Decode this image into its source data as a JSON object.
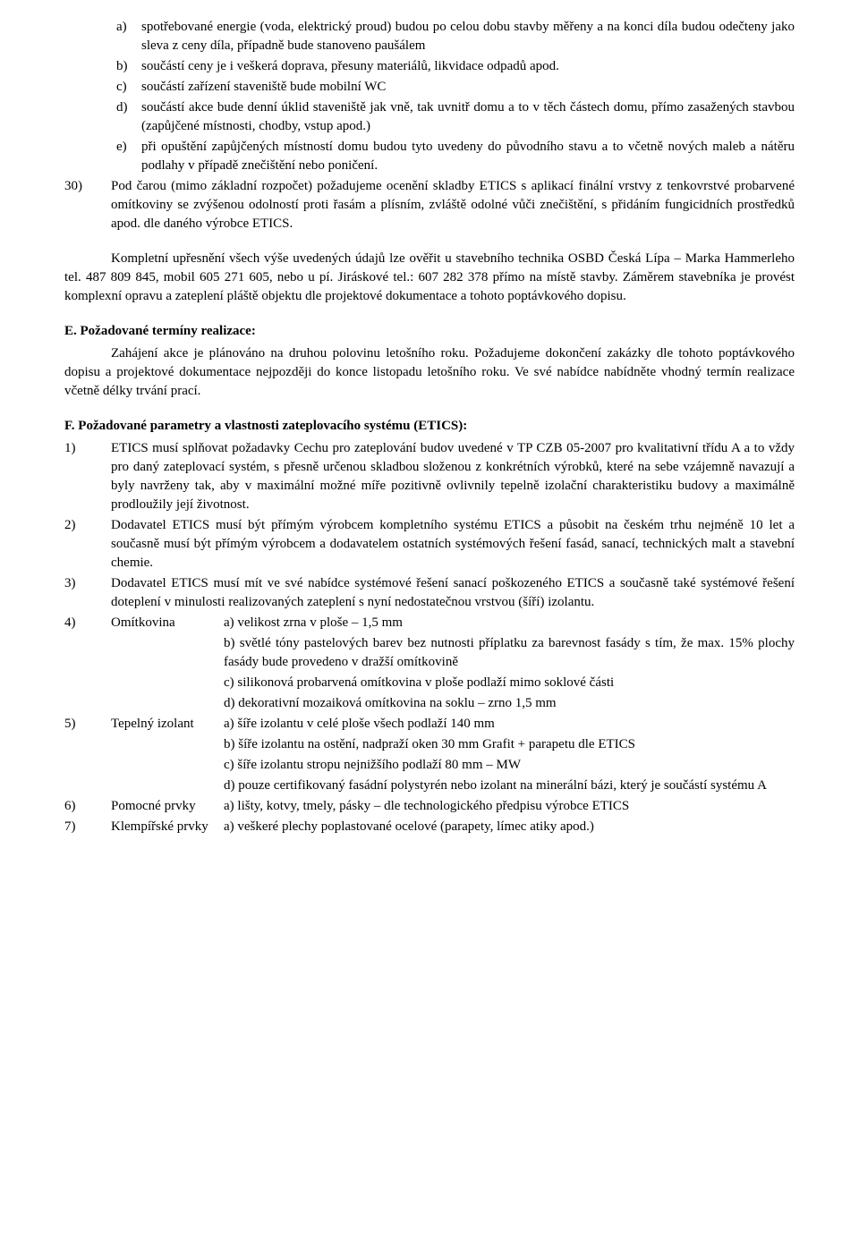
{
  "innerA": {
    "label": "a)",
    "text": "spotřebované energie (voda, elektrický proud) budou po celou dobu stavby měřeny a na konci díla budou odečteny jako sleva z ceny díla, případně bude stanoveno paušálem"
  },
  "innerB": {
    "label": "b)",
    "text": "součástí ceny je i veškerá doprava, přesuny materiálů, likvidace odpadů apod."
  },
  "innerC": {
    "label": "c)",
    "text": "součástí zařízení staveniště bude mobilní WC"
  },
  "innerD": {
    "label": "d)",
    "text": "součástí akce bude denní úklid staveniště jak vně, tak uvnitř domu a to v těch částech domu, přímo zasažených stavbou (zapůjčené místnosti, chodby, vstup apod.)"
  },
  "innerE": {
    "label": "e)",
    "text": "při opuštění zapůjčených místností domu budou tyto uvedeny do původního stavu a to včetně nových maleb a nátěru podlahy v případě znečištění nebo poničení."
  },
  "item30": {
    "label": "30)",
    "text": "Pod čarou (mimo základní rozpočet) požadujeme ocenění skladby ETICS s aplikací finální vrstvy z tenkovrstvé probarvené omítkoviny se zvýšenou odolností proti řasám a plísním, zvláště odolné vůči znečištění, s přidáním fungicidních prostředků apod. dle daného výrobce ETICS."
  },
  "contact": "Kompletní upřesnění všech výše uvedených údajů lze ověřit u stavebního technika OSBD Česká Lípa – Marka Hammerleho tel. 487 809 845, mobil 605 271 605, nebo u pí. Jiráskové tel.: 607 282 378 přímo na místě stavby. Záměrem stavebníka je provést komplexní opravu a zateplení pláště objektu dle projektové dokumentace a tohoto poptávkového dopisu.",
  "sectionE": {
    "title": "E. Požadované termíny realizace:",
    "text": "Zahájení akce je plánováno na druhou polovinu letošního roku. Požadujeme dokončení zakázky dle tohoto poptávkového dopisu a projektové dokumentace nejpozději do konce listopadu letošního roku. Ve své nabídce nabídněte vhodný termín realizace včetně délky trvání prací."
  },
  "sectionF": {
    "title": "F. Požadované parametry a vlastnosti zateplovacího systému (ETICS):",
    "f1": {
      "label": "1)",
      "text": "ETICS musí splňovat požadavky Cechu pro zateplování budov uvedené v TP CZB 05-2007 pro kvalitativní třídu A a to vždy pro daný zateplovací systém, s přesně určenou skladbou složenou z konkrétních výrobků, které na sebe vzájemně navazují a byly navrženy tak, aby v maximální možné míře pozitivně ovlivnily tepelně izolační charakteristiku budovy a maximálně prodloužily její životnost."
    },
    "f2": {
      "label": "2)",
      "text": "Dodavatel ETICS musí být přímým výrobcem kompletního systému ETICS a působit na českém trhu nejméně 10 let a současně musí být přímým výrobcem a dodavatelem ostatních systémových řešení fasád, sanací, technických malt a stavební chemie."
    },
    "f3": {
      "label": "3)",
      "text": "Dodavatel ETICS musí mít ve své nabídce systémové řešení sanací poškozeného ETICS a současně také systémové řešení doteplení v minulosti realizovaných zateplení s nyní nedostatečnou vrstvou (šíří) izolantu."
    },
    "f4": {
      "label": "4)",
      "name": "Omítkovina",
      "a": "a) velikost zrna v ploše – 1,5 mm",
      "b": "b) světlé tóny pastelových barev bez nutnosti příplatku za barevnost fasády s tím, že max. 15% plochy fasády bude provedeno v dražší omítkovině",
      "c": "c) silikonová probarvená omítkovina v ploše podlaží mimo soklové části",
      "d": "d) dekorativní mozaiková omítkovina na soklu – zrno 1,5 mm"
    },
    "f5": {
      "label": "5)",
      "name": "Tepelný izolant",
      "a": "a) šíře izolantu v celé ploše všech podlaží 140 mm",
      "b": "b) šíře izolantu na ostění, nadpraží oken 30 mm Grafit + parapetu dle ETICS",
      "c": "c) šíře izolantu stropu nejnižšího podlaží 80 mm – MW",
      "d": "d) pouze certifikovaný fasádní polystyrén nebo izolant na minerální bázi, který je součástí systému A"
    },
    "f6": {
      "label": "6)",
      "name": "Pomocné prvky",
      "a": "a) lišty, kotvy, tmely, pásky – dle technologického předpisu výrobce ETICS"
    },
    "f7": {
      "label": "7)",
      "name": "Klempířské prvky",
      "a": "a) veškeré plechy poplastované ocelové (parapety, límec atiky apod.)"
    }
  }
}
